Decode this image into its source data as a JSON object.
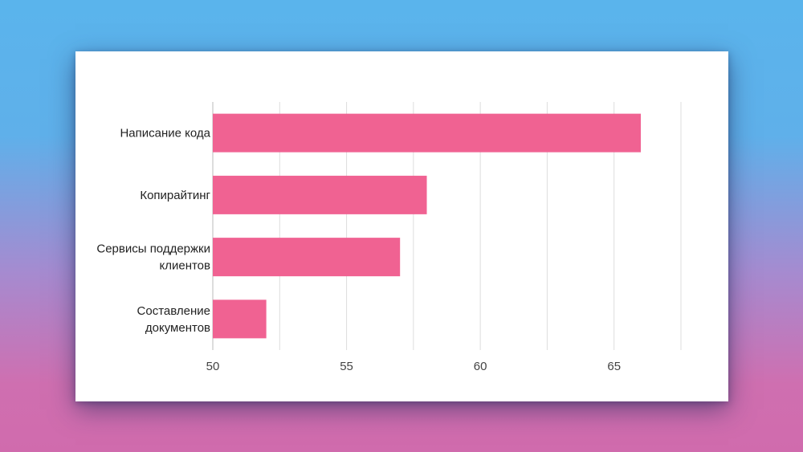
{
  "chart_data": {
    "type": "bar",
    "orientation": "horizontal",
    "title": "",
    "xlabel": "",
    "ylabel": "",
    "categories": [
      [
        "Написание кода"
      ],
      [
        "Копирайтинг"
      ],
      [
        "Сервисы поддержки",
        "клиентов"
      ],
      [
        "Составление",
        "документов"
      ]
    ],
    "values": [
      66,
      58,
      57,
      52
    ],
    "xlim": [
      50,
      67.5
    ],
    "xticks": [
      50,
      55,
      60,
      65
    ],
    "gridlines": [
      50,
      52.5,
      55,
      57.5,
      60,
      62.5,
      65,
      67.5
    ],
    "grid": true,
    "legend": "none",
    "bar_color": "#f06292",
    "grid_color": "#dddddd"
  }
}
